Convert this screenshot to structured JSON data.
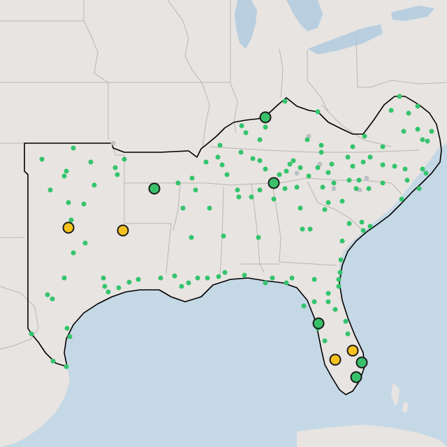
{
  "map": {
    "colors": {
      "land": "#e8e4e1",
      "water": "#c5d8e6",
      "lakes": "#b9cfe0",
      "state_lines": "#b9b6b2",
      "region_outline": "#000000",
      "green_site": "#35c46d",
      "grey_site": "#bcc1c5",
      "green_marker": "#38c16a",
      "yellow_marker": "#f7c21e"
    },
    "legend_categories": [
      "green-site",
      "grey-site",
      "green-marker",
      "yellow-marker"
    ]
  }
}
